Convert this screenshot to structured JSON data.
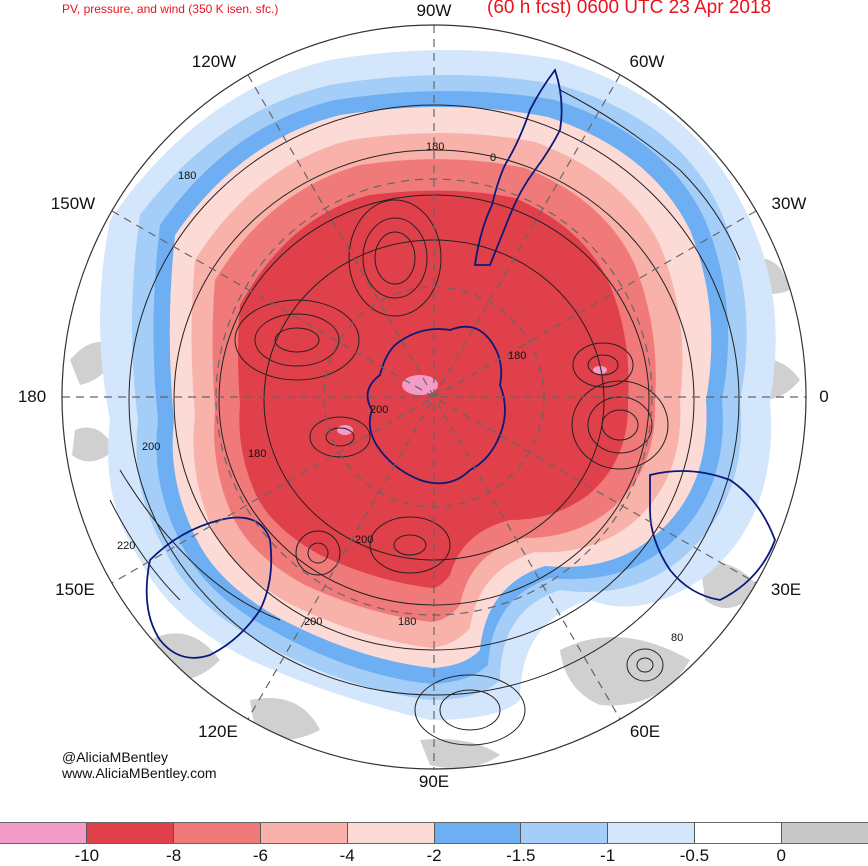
{
  "header": {
    "left_title": "PV, pressure, and wind (350 K isen. sfc.)",
    "right_title": "(60 h fcst) 0600 UTC 23 Apr 2018"
  },
  "map": {
    "longitude_labels": {
      "lon_90w": "90W",
      "lon_120w": "120W",
      "lon_60w": "60W",
      "lon_150w": "150W",
      "lon_30w": "30W",
      "lon_180": "180",
      "lon_0": "0",
      "lon_150e": "150E",
      "lon_30e": "30E",
      "lon_120e": "120E",
      "lon_60e": "60E",
      "lon_90e": "90E"
    },
    "contour_labels": {
      "c1": "180",
      "c2": "180",
      "c3": "0",
      "c4": "180",
      "c5": "200",
      "c6": "180",
      "c7": "200",
      "c8": "220",
      "c9": "200",
      "c10": "200",
      "c11": "180",
      "c12": "80"
    },
    "colors": {
      "pv_le_minus10": "#f49cc8",
      "pv_minus10_minus8": "#e0404a",
      "pv_minus8_minus6": "#f07a7a",
      "pv_minus6_minus4": "#f9b2aa",
      "pv_minus4_minus2": "#fcdad6",
      "pv_minus2_minus1_5": "#6eaef2",
      "pv_minus1_5_minus1": "#a4cdf8",
      "pv_minus1_minus0_5": "#d4e6fb",
      "pv_minus0_5_0": "#ffffff",
      "pv_ge_0": "#c8c8c8",
      "coastline": "#0a1a7a",
      "contour": "#222222"
    }
  },
  "credits": {
    "handle": "@AliciaMBentley",
    "website": "www.AliciaMBentley.com"
  },
  "colorbar": {
    "ticks": [
      "-10",
      "-8",
      "-6",
      "-4",
      "-2",
      "-1.5",
      "-1",
      "-0.5",
      "0"
    ],
    "segment_colors": [
      "#f49cc8",
      "#e0404a",
      "#f07a7a",
      "#f9b2aa",
      "#fcdad6",
      "#6eaef2",
      "#a4cdf8",
      "#d4e6fb",
      "#ffffff",
      "#c8c8c8"
    ]
  }
}
